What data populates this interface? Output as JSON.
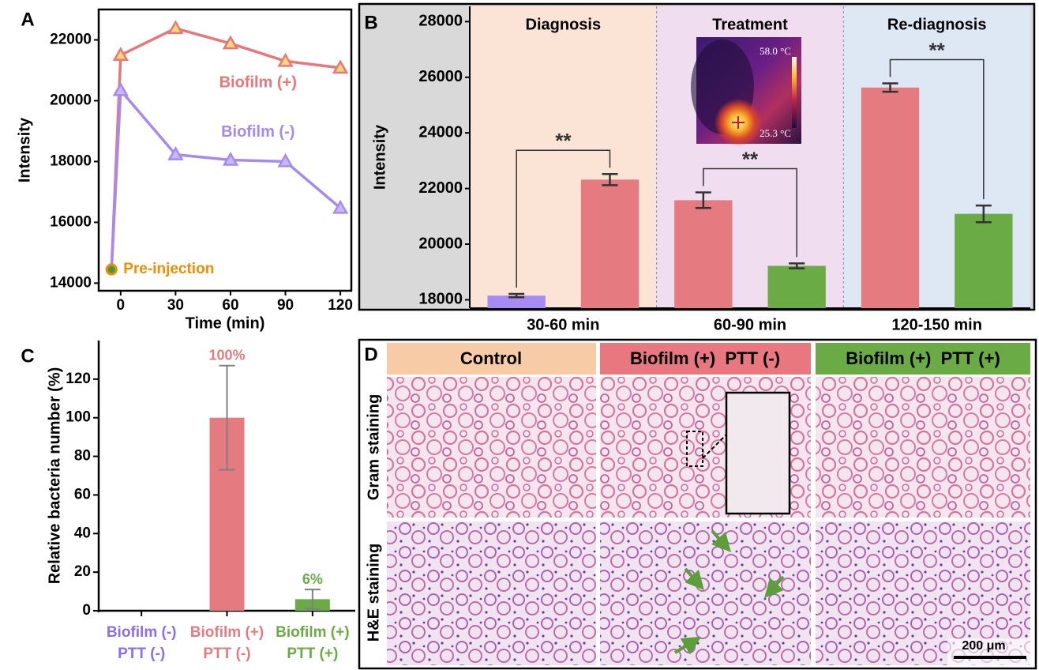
{
  "chart_data": [
    {
      "type": "line",
      "label": "A",
      "xlabel": "Time (min)",
      "ylabel": "Intensity",
      "x": [
        -5,
        0,
        30,
        60,
        90,
        120
      ],
      "xlim": [
        -12,
        126
      ],
      "xticks": [
        0,
        30,
        60,
        90,
        120
      ],
      "ylim": [
        13750,
        23000
      ],
      "yticks": [
        14000,
        16000,
        18000,
        20000,
        22000
      ],
      "series": [
        {
          "name": "Biofilm (+)",
          "color": "#e8767a",
          "marker_color": "#f7d774",
          "values": [
            14450,
            21500,
            22380,
            21880,
            21300,
            21080
          ]
        },
        {
          "name": "Biofilm (-)",
          "color": "#a68af0",
          "marker_color": "#c9b8fa",
          "values": [
            14450,
            20340,
            18230,
            18050,
            18000,
            16470
          ]
        }
      ],
      "start_label": "Pre-injection",
      "start_color": "#f28c00",
      "start_fill": "#3f9b3f"
    },
    {
      "type": "grouped_bar",
      "label": "B",
      "ylabel": "Intensity",
      "categories": [
        "30-60 min",
        "60-90 min",
        "120-150 min"
      ],
      "sections": [
        "Diagnosis",
        "Treatment",
        "Re-diagnosis"
      ],
      "section_colors": [
        "#fbe4d5",
        "#f0def0",
        "#dde8f4"
      ],
      "values": [
        [
          18150,
          22320
        ],
        [
          21580,
          19220
        ],
        [
          25630,
          21090
        ]
      ],
      "errors": [
        [
          60,
          200
        ],
        [
          280,
          90
        ],
        [
          150,
          300
        ]
      ],
      "colors": [
        [
          "#a68cf2",
          "#e57b80"
        ],
        [
          "#e57b80",
          "#6aab45"
        ],
        [
          "#e57b80",
          "#6aab45"
        ]
      ],
      "significance": [
        "**",
        "**",
        "**"
      ],
      "ylim": [
        17700,
        28550
      ],
      "yticks": [
        18000,
        20000,
        22000,
        24000,
        26000,
        28000
      ],
      "inset_labels": [
        "58.0 °C",
        "25.3 °C"
      ]
    },
    {
      "type": "bar",
      "label": "C",
      "ylabel": "Relative bacteria number (%)",
      "categories": [
        [
          "Biofilm (-)",
          "PTT (-)"
        ],
        [
          "Biofilm (+)",
          "PTT (-)"
        ],
        [
          "Biofilm (+)",
          "PTT (+)"
        ]
      ],
      "values": [
        0,
        100,
        6
      ],
      "errors": [
        null,
        27,
        5
      ],
      "value_labels": [
        null,
        "100%",
        "6%"
      ],
      "colors": [
        "#8b6cf2",
        "#e57b80",
        "#6aab45"
      ],
      "ylim": [
        0,
        140
      ],
      "yticks": [
        0,
        20,
        40,
        60,
        80,
        100,
        120
      ]
    }
  ],
  "image_panel": {
    "label": "D",
    "columns": [
      "Control",
      "Biofilm (+)  PTT (-)",
      "Biofilm (+)  PTT (+)"
    ],
    "column_colors": [
      "#f8cba7",
      "#e8777f",
      "#6aab45"
    ],
    "rows": [
      "Gram staining",
      "H&E staining"
    ],
    "scale_bar": "200 μm"
  }
}
